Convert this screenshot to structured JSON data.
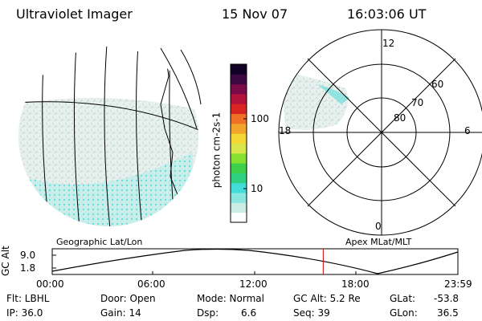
{
  "header": {
    "instrument": "Ultraviolet Imager",
    "date": "15 Nov 07",
    "time": "16:03:06 UT"
  },
  "colorbar": {
    "unit_label": "photon cm-2s-1",
    "ticks": [
      "100",
      "10"
    ],
    "colors": [
      "#ffffff",
      "#c9ece4",
      "#89e6e0",
      "#43dcd8",
      "#2fd080",
      "#3bd14a",
      "#86e030",
      "#d8e64b",
      "#f3d735",
      "#f4a42b",
      "#f07028",
      "#d92522",
      "#b3123a",
      "#7a0b48",
      "#3c0840",
      "#120026"
    ]
  },
  "polar_plot": {
    "mlt_labels": [
      "12",
      "18",
      "6",
      "0"
    ],
    "lat_labels": [
      "60",
      "70",
      "80"
    ]
  },
  "map_labels": {
    "left": "Geographic Lat/Lon",
    "right": "Apex MLat/MLT"
  },
  "orbit_plot": {
    "ylabel": "GC Alt",
    "y_ticks": [
      "9.0",
      "1.8"
    ],
    "x_ticks": [
      "00:00",
      "06:00",
      "12:00",
      "18:00",
      "23:59"
    ],
    "current_time_marker_frac": 0.668,
    "marker_color": "#cc0000"
  },
  "status": {
    "flt": "Flt: LBHL",
    "ip": "IP: 36.0",
    "door": "Door: Open",
    "gain": "Gain: 14",
    "mode": "Mode: Normal",
    "dsp_label": "Dsp:",
    "dsp_value": "6.6",
    "gc_alt": "GC Alt: 5.2 Re",
    "seq": "Seq: 39",
    "glat_label": "GLat:",
    "glat_value": "-53.8",
    "glon_label": "GLon:",
    "glon_value": "36.5"
  }
}
